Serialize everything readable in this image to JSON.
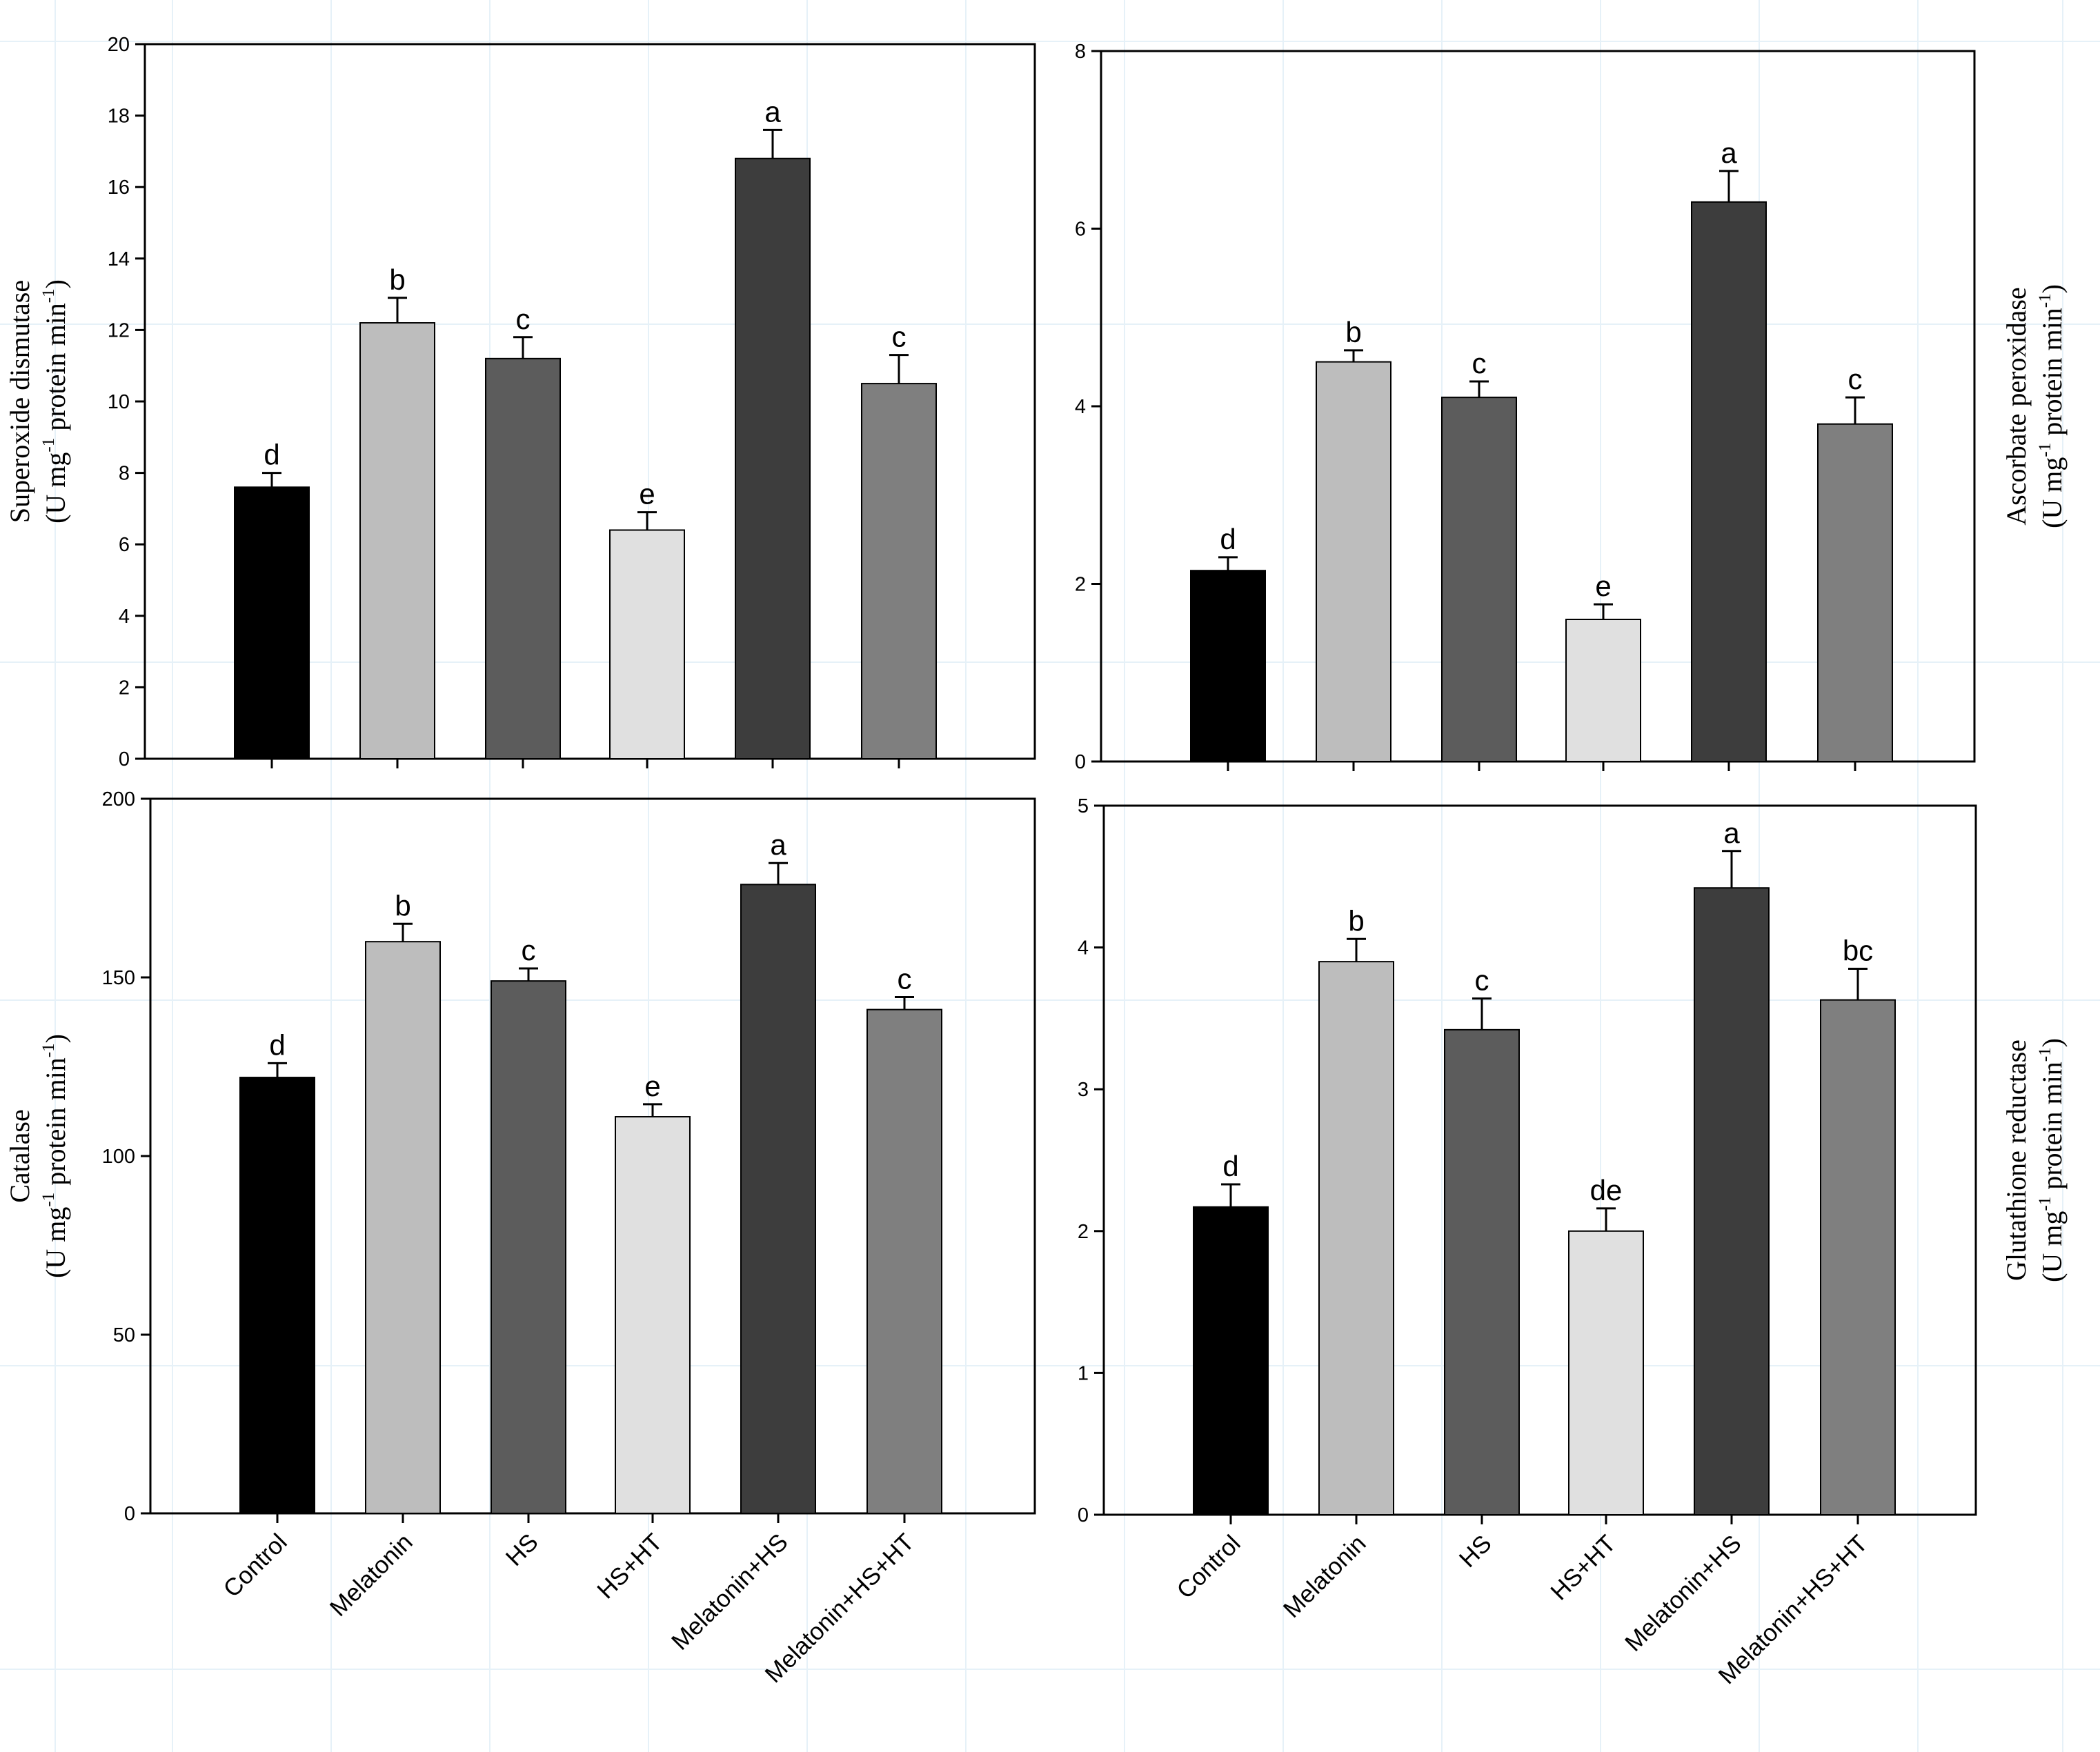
{
  "chart_data": [
    {
      "type": "bar",
      "panel": "top-left",
      "ylabel_line1": "Superoxide dismutase",
      "ylabel_line2": {
        "a": "(U mg",
        "sup1": "-1",
        "b": " protein min",
        "sup2": "-1",
        "c": ")"
      },
      "ylim": [
        0,
        20
      ],
      "yticks": [
        0,
        2,
        4,
        6,
        8,
        10,
        12,
        14,
        16,
        18,
        20
      ],
      "categories": [
        "Control",
        "Melatonin",
        "HS",
        "HS+HT",
        "Melatonin+HS",
        "Melatonin+HS+HT"
      ],
      "values": [
        7.6,
        12.2,
        11.2,
        6.4,
        16.8,
        10.5
      ],
      "errors": [
        0.4,
        0.7,
        0.6,
        0.5,
        0.8,
        0.8
      ],
      "letters": [
        "d",
        "b",
        "c",
        "e",
        "a",
        "c"
      ],
      "colors": [
        "#000000",
        "#bdbdbd",
        "#5c5c5c",
        "#e0e0e0",
        "#3d3d3d",
        "#7f7f7f"
      ]
    },
    {
      "type": "bar",
      "panel": "top-right",
      "ylabel_line1": "Ascorbate peroxidase",
      "ylabel_line2": {
        "a": "(U mg",
        "sup1": "-1",
        "b": " protein min",
        "sup2": "-1",
        "c": ")"
      },
      "ylim": [
        0,
        8
      ],
      "yticks": [
        0,
        2,
        4,
        6,
        8
      ],
      "categories": [
        "Control",
        "Melatonin",
        "HS",
        "HS+HT",
        "Melatonin+HS",
        "Melatonin+HS+HT"
      ],
      "values": [
        2.15,
        4.5,
        4.1,
        1.6,
        6.3,
        3.8
      ],
      "errors": [
        0.15,
        0.13,
        0.18,
        0.17,
        0.35,
        0.3
      ],
      "letters": [
        "d",
        "b",
        "c",
        "e",
        "a",
        "c"
      ],
      "colors": [
        "#000000",
        "#bdbdbd",
        "#5c5c5c",
        "#e0e0e0",
        "#3d3d3d",
        "#7f7f7f"
      ]
    },
    {
      "type": "bar",
      "panel": "bottom-left",
      "ylabel_line1": "Catalase",
      "ylabel_line2": {
        "a": "(U mg",
        "sup1": "-1",
        "b": " protein min",
        "sup2": "-1",
        "c": ")"
      },
      "ylim": [
        0,
        200
      ],
      "yticks": [
        0,
        50,
        100,
        150,
        200
      ],
      "categories": [
        "Control",
        "Melatonin",
        "HS",
        "HS+HT",
        "Melatonin+HS",
        "Melatonin+HS+HT"
      ],
      "values": [
        122,
        160,
        149,
        111,
        176,
        141
      ],
      "errors": [
        4,
        5,
        3.5,
        3.5,
        6,
        3.5
      ],
      "letters": [
        "d",
        "b",
        "c",
        "e",
        "a",
        "c"
      ],
      "colors": [
        "#000000",
        "#bdbdbd",
        "#5c5c5c",
        "#e0e0e0",
        "#3d3d3d",
        "#7f7f7f"
      ]
    },
    {
      "type": "bar",
      "panel": "bottom-right",
      "ylabel_line1": "Glutathione reductase",
      "ylabel_line2": {
        "a": "(U mg",
        "sup1": "-1",
        "b": " protein min",
        "sup2": "-1",
        "c": ")"
      },
      "ylim": [
        0,
        5
      ],
      "yticks": [
        0,
        1,
        2,
        3,
        4,
        5
      ],
      "categories": [
        "Control",
        "Melatonin",
        "HS",
        "HS+HT",
        "Melatonin+HS",
        "Melatonin+HS+HT"
      ],
      "values": [
        2.17,
        3.9,
        3.42,
        2.0,
        4.42,
        3.63
      ],
      "errors": [
        0.16,
        0.16,
        0.22,
        0.16,
        0.26,
        0.22
      ],
      "letters": [
        "d",
        "b",
        "c",
        "de",
        "a",
        "bc"
      ],
      "colors": [
        "#000000",
        "#bdbdbd",
        "#5c5c5c",
        "#e0e0e0",
        "#3d3d3d",
        "#7f7f7f"
      ]
    }
  ]
}
